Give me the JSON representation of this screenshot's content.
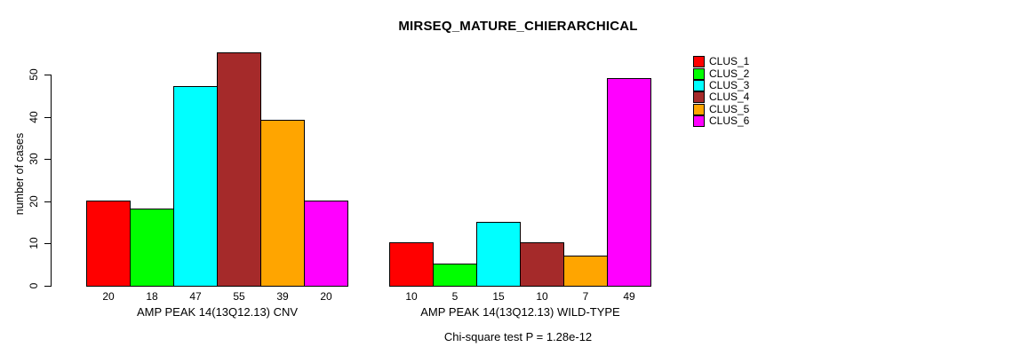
{
  "chart_data": {
    "type": "bar",
    "title": "MIRSEQ_MATURE_CHIERARCHICAL",
    "ylabel": "number of cases",
    "ylim": [
      0,
      55
    ],
    "yticks": [
      0,
      10,
      20,
      30,
      40,
      50
    ],
    "grid": false,
    "legend_position": "top-right",
    "bar_value_labels_shown": true,
    "categories": [
      "AMP PEAK 14(13Q12.13) CNV",
      "AMP PEAK 14(13Q12.13) WILD-TYPE"
    ],
    "series": [
      {
        "name": "CLUS_1",
        "color": "#ff0000",
        "values": [
          20,
          10
        ]
      },
      {
        "name": "CLUS_2",
        "color": "#00ff00",
        "values": [
          18,
          5
        ]
      },
      {
        "name": "CLUS_3",
        "color": "#00ffff",
        "values": [
          47,
          15
        ]
      },
      {
        "name": "CLUS_4",
        "color": "#a52a2a",
        "values": [
          55,
          10
        ]
      },
      {
        "name": "CLUS_5",
        "color": "#ffa500",
        "values": [
          39,
          7
        ]
      },
      {
        "name": "CLUS_6",
        "color": "#ff00ff",
        "values": [
          20,
          49
        ]
      }
    ],
    "annotation": "Chi-square test P = 1.28e-12"
  }
}
